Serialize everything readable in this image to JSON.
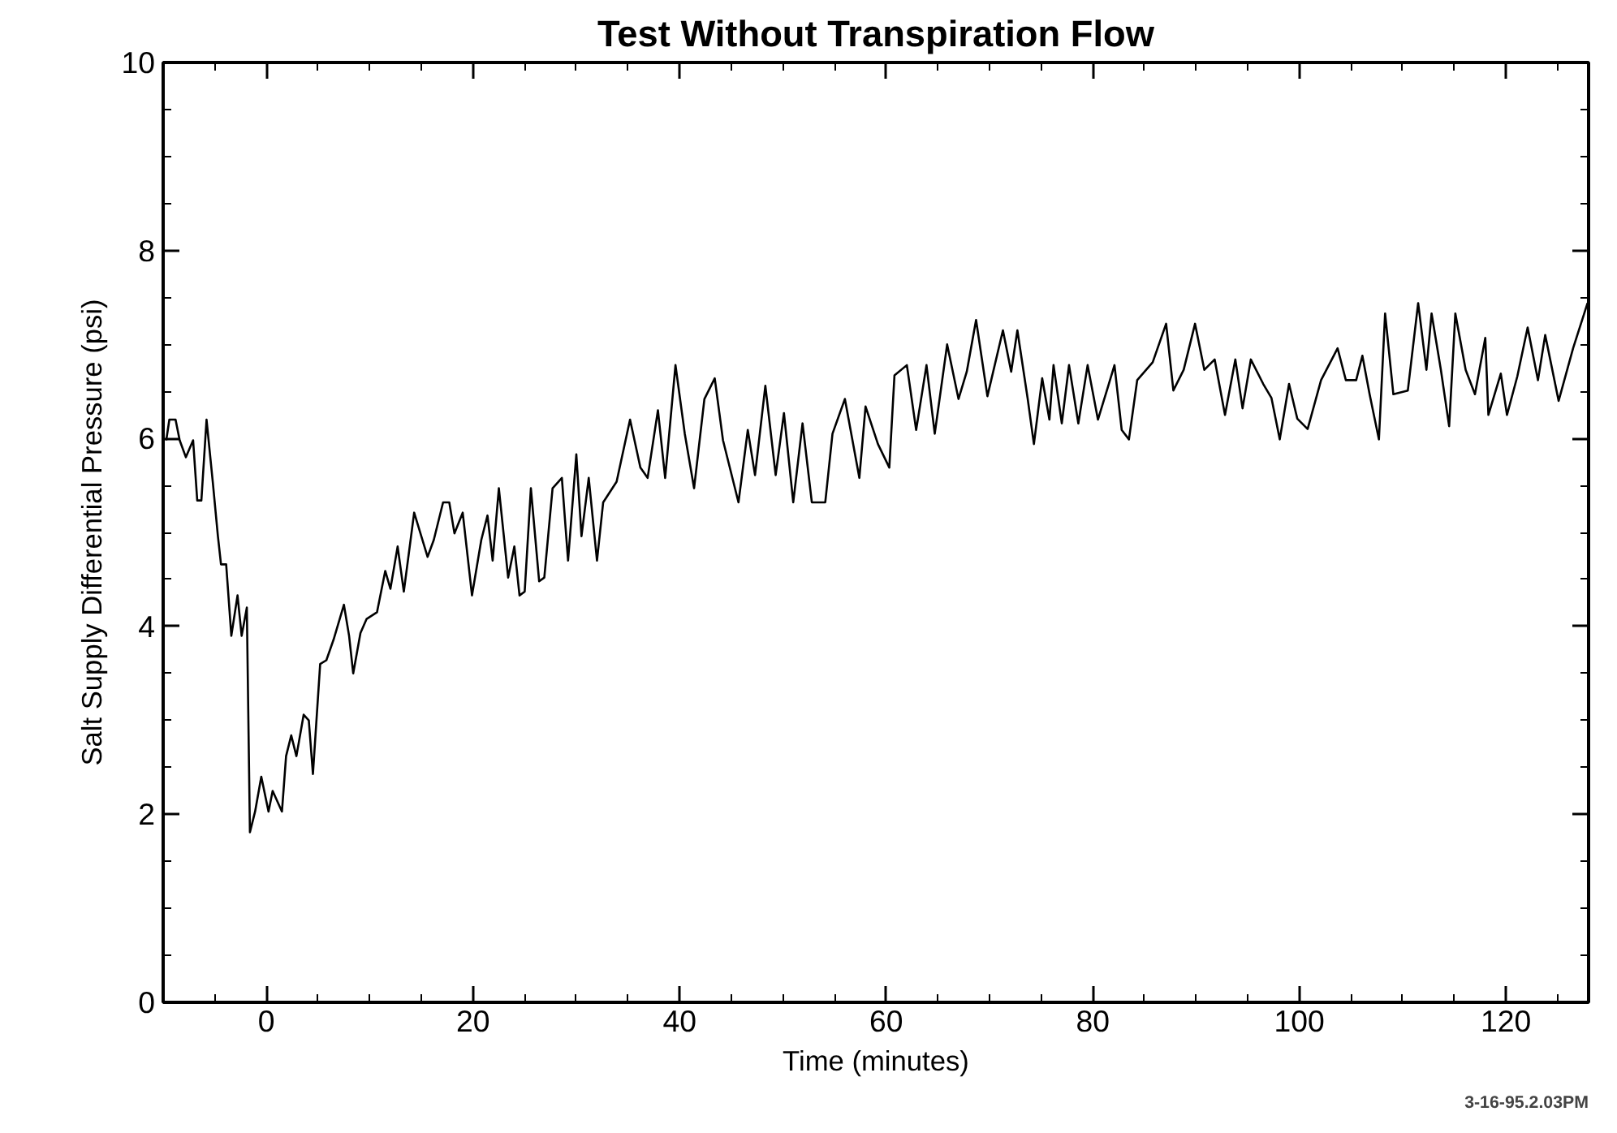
{
  "chart_data": {
    "type": "line",
    "title": "Test Without Transpiration Flow",
    "xlabel": "Time (minutes)",
    "ylabel": "Salt Supply Differential Pressure (psi)",
    "annotations": [
      "3-16-95.2.03PM"
    ],
    "xlim": [
      -10,
      128
    ],
    "ylim": [
      0,
      10
    ],
    "xticks": [
      0,
      20,
      40,
      60,
      80,
      100,
      120
    ],
    "yticks": [
      0,
      2,
      4,
      6,
      8,
      10
    ],
    "grid": false,
    "marker": "none",
    "line_style": "solid",
    "series": [
      {
        "color": "#000000",
        "x": [
          -9.7,
          -9.4,
          -8.8,
          -8.4,
          -7.8,
          -7.1,
          -6.7,
          -6.3,
          -5.8,
          -5.2,
          -4.7,
          -4.4,
          -3.9,
          -3.4,
          -2.8,
          -2.4,
          -1.9,
          -1.6,
          -1.1,
          -0.5,
          0.2,
          0.6,
          1.5,
          1.9,
          2.4,
          2.9,
          3.6,
          4.1,
          4.5,
          5.2,
          5.8,
          6.5,
          7.5,
          8.0,
          8.4,
          9.1,
          9.7,
          10.7,
          11.5,
          12.0,
          12.7,
          13.3,
          14.3,
          15.6,
          16.2,
          17.1,
          17.7,
          18.2,
          19.0,
          19.9,
          20.8,
          21.4,
          21.9,
          22.5,
          23.4,
          24.0,
          24.5,
          25.0,
          25.6,
          26.4,
          26.9,
          27.7,
          28.6,
          29.2,
          30.0,
          30.5,
          31.2,
          32.0,
          32.6,
          33.9,
          35.2,
          36.2,
          36.9,
          37.9,
          38.6,
          39.6,
          40.5,
          41.4,
          42.4,
          43.4,
          44.2,
          45.7,
          46.6,
          47.3,
          48.3,
          49.3,
          50.1,
          51.0,
          51.9,
          52.8,
          54.1,
          54.8,
          56.0,
          57.4,
          58.0,
          59.2,
          60.3,
          60.8,
          62.0,
          62.9,
          63.9,
          64.7,
          65.9,
          67.0,
          67.8,
          68.7,
          69.8,
          71.3,
          72.1,
          72.7,
          73.7,
          74.3,
          75.1,
          75.8,
          76.2,
          77.0,
          77.7,
          78.6,
          79.5,
          80.5,
          81.5,
          82.1,
          82.8,
          83.5,
          84.3,
          85.8,
          87.1,
          87.8,
          88.8,
          89.9,
          90.8,
          91.8,
          92.8,
          93.8,
          94.5,
          95.3,
          96.5,
          97.3,
          98.1,
          99.0,
          99.8,
          100.8,
          102.1,
          103.7,
          104.5,
          105.5,
          106.1,
          106.8,
          107.7,
          108.3,
          109.1,
          110.5,
          111.5,
          112.3,
          112.8,
          113.7,
          114.5,
          115.1,
          116.1,
          117.0,
          118.0,
          118.3,
          119.5,
          120.1,
          121.1,
          122.1,
          123.1,
          123.8,
          125.1,
          126.5,
          127.9
        ],
        "values": [
          5.98,
          6.2,
          6.2,
          5.98,
          5.8,
          5.98,
          5.34,
          5.34,
          6.2,
          5.54,
          4.96,
          4.66,
          4.66,
          3.9,
          4.33,
          3.9,
          4.2,
          1.81,
          2.03,
          2.4,
          2.03,
          2.25,
          2.03,
          2.62,
          2.84,
          2.62,
          3.06,
          3.0,
          2.43,
          3.6,
          3.64,
          3.86,
          4.23,
          3.9,
          3.5,
          3.93,
          4.08,
          4.15,
          4.59,
          4.4,
          4.85,
          4.37,
          5.21,
          4.74,
          4.92,
          5.32,
          5.32,
          4.99,
          5.21,
          4.33,
          4.92,
          5.18,
          4.7,
          5.47,
          4.52,
          4.85,
          4.33,
          4.37,
          5.47,
          4.48,
          4.52,
          5.47,
          5.58,
          4.7,
          5.83,
          4.96,
          5.58,
          4.7,
          5.32,
          5.54,
          6.2,
          5.69,
          5.58,
          6.3,
          5.58,
          6.78,
          6.05,
          5.47,
          6.42,
          6.64,
          5.98,
          5.32,
          6.09,
          5.61,
          6.56,
          5.61,
          6.27,
          5.32,
          6.16,
          5.32,
          5.32,
          6.05,
          6.42,
          5.58,
          6.34,
          5.94,
          5.69,
          6.67,
          6.78,
          6.09,
          6.78,
          6.05,
          7.0,
          6.42,
          6.71,
          7.26,
          6.45,
          7.15,
          6.71,
          7.15,
          6.42,
          5.94,
          6.64,
          6.2,
          6.78,
          6.16,
          6.78,
          6.16,
          6.78,
          6.2,
          6.56,
          6.78,
          6.09,
          5.99,
          6.62,
          6.81,
          7.22,
          6.51,
          6.73,
          7.22,
          6.73,
          6.84,
          6.25,
          6.84,
          6.32,
          6.84,
          6.58,
          6.43,
          5.99,
          6.58,
          6.21,
          6.1,
          6.62,
          6.96,
          6.62,
          6.62,
          6.88,
          6.47,
          5.99,
          7.33,
          6.47,
          6.51,
          7.44,
          6.73,
          7.33,
          6.73,
          6.13,
          7.33,
          6.73,
          6.47,
          7.07,
          6.25,
          6.69,
          6.25,
          6.66,
          7.18,
          6.62,
          7.1,
          6.4,
          6.96,
          7.44
        ]
      }
    ]
  }
}
